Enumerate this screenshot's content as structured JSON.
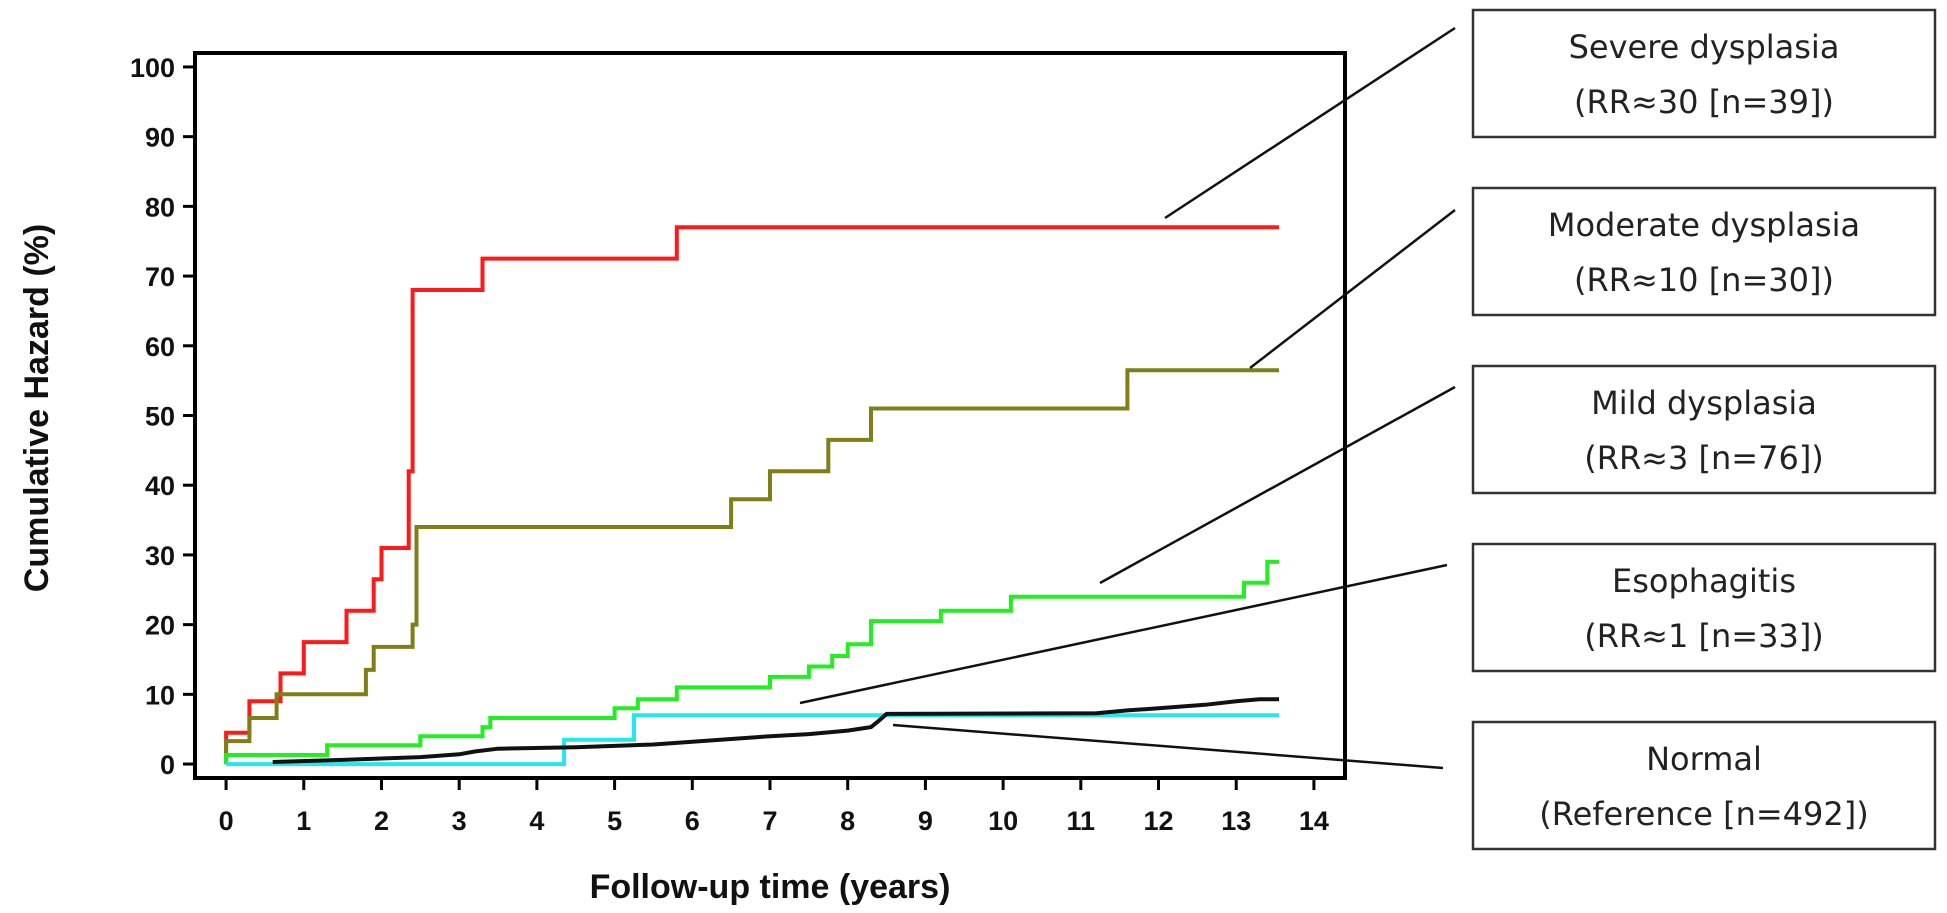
{
  "chart_data": {
    "type": "line",
    "title": "",
    "xlabel": "Follow-up time (years)",
    "ylabel": "Cumulative Hazard (%)",
    "xlim": [
      -0.4,
      14.4
    ],
    "ylim": [
      -2,
      102
    ],
    "xticks": [
      "0",
      "1",
      "2",
      "3",
      "4",
      "5",
      "6",
      "7",
      "8",
      "9",
      "10",
      "11",
      "12",
      "13",
      "14"
    ],
    "yticks": [
      "0",
      "10",
      "20",
      "30",
      "40",
      "50",
      "60",
      "70",
      "80",
      "90",
      "100"
    ],
    "grid": false,
    "line_style": "step",
    "legend_placement": "right",
    "series": [
      {
        "name": "Severe dysplasia",
        "label_lines": [
          "Severe dysplasia",
          "(RR≈30 [n=39])"
        ],
        "color": "#ff1a1a",
        "points": [
          [
            0,
            0
          ],
          [
            0,
            4.5
          ],
          [
            0.3,
            4.5
          ],
          [
            0.3,
            9
          ],
          [
            0.7,
            9
          ],
          [
            0.7,
            13
          ],
          [
            1,
            13
          ],
          [
            1,
            17.5
          ],
          [
            1.55,
            17.5
          ],
          [
            1.55,
            22
          ],
          [
            1.9,
            22
          ],
          [
            1.9,
            26.5
          ],
          [
            2.0,
            26.5
          ],
          [
            2.0,
            31
          ],
          [
            2.35,
            31
          ],
          [
            2.35,
            42
          ],
          [
            2.4,
            42
          ],
          [
            2.4,
            68
          ],
          [
            3.3,
            68
          ],
          [
            3.3,
            72.5
          ],
          [
            5.8,
            72.5
          ],
          [
            5.8,
            77
          ],
          [
            13.55,
            77
          ]
        ]
      },
      {
        "name": "Moderate dysplasia",
        "label_lines": [
          "Moderate dysplasia",
          "(RR≈10 [n=30])"
        ],
        "color": "#7f7f16",
        "points": [
          [
            0,
            0
          ],
          [
            0,
            3.3
          ],
          [
            0.3,
            3.3
          ],
          [
            0.3,
            6.6
          ],
          [
            0.65,
            6.6
          ],
          [
            0.65,
            10
          ],
          [
            1.8,
            10
          ],
          [
            1.8,
            13.5
          ],
          [
            1.9,
            13.5
          ],
          [
            1.9,
            16.8
          ],
          [
            2.4,
            16.8
          ],
          [
            2.4,
            20
          ],
          [
            2.45,
            20
          ],
          [
            2.45,
            34
          ],
          [
            6.5,
            34
          ],
          [
            6.5,
            38
          ],
          [
            7.0,
            38
          ],
          [
            7.0,
            42
          ],
          [
            7.75,
            42
          ],
          [
            7.75,
            46.5
          ],
          [
            8.3,
            46.5
          ],
          [
            8.3,
            51
          ],
          [
            11.6,
            51
          ],
          [
            11.6,
            56.5
          ],
          [
            13.55,
            56.5
          ]
        ]
      },
      {
        "name": "Mild dysplasia",
        "label_lines": [
          "Mild dysplasia",
          "(RR≈3 [n=76])"
        ],
        "color": "#22ee22",
        "points": [
          [
            0,
            0
          ],
          [
            0,
            1.3
          ],
          [
            1.3,
            1.3
          ],
          [
            1.3,
            2.7
          ],
          [
            2.5,
            2.7
          ],
          [
            2.5,
            4
          ],
          [
            3.3,
            4
          ],
          [
            3.3,
            5.3
          ],
          [
            3.4,
            5.3
          ],
          [
            3.4,
            6.6
          ],
          [
            5.0,
            6.6
          ],
          [
            5.0,
            8
          ],
          [
            5.3,
            8
          ],
          [
            5.3,
            9.3
          ],
          [
            5.8,
            9.3
          ],
          [
            5.8,
            11
          ],
          [
            7.0,
            11
          ],
          [
            7.0,
            12.5
          ],
          [
            7.5,
            12.5
          ],
          [
            7.5,
            14
          ],
          [
            7.8,
            14
          ],
          [
            7.8,
            15.5
          ],
          [
            8.0,
            15.5
          ],
          [
            8.0,
            17.2
          ],
          [
            8.3,
            17.2
          ],
          [
            8.3,
            20.5
          ],
          [
            9.2,
            20.5
          ],
          [
            9.2,
            22
          ],
          [
            10.1,
            22
          ],
          [
            10.1,
            24
          ],
          [
            13.1,
            24
          ],
          [
            13.1,
            26
          ],
          [
            13.4,
            26
          ],
          [
            13.4,
            29
          ],
          [
            13.55,
            29
          ]
        ]
      },
      {
        "name": "Esophagitis",
        "label_lines": [
          "Esophagitis",
          "(RR≈1 [n=33])"
        ],
        "color": "#22e6f0",
        "points": [
          [
            0,
            0
          ],
          [
            4.35,
            0
          ],
          [
            4.35,
            3.5
          ],
          [
            5.25,
            3.5
          ],
          [
            5.25,
            7
          ],
          [
            13.55,
            7
          ]
        ]
      },
      {
        "name": "Normal",
        "label_lines": [
          "Normal",
          "(Reference [n=492])"
        ],
        "color": "#111111",
        "points": [
          [
            0.6,
            0.3
          ],
          [
            1.5,
            0.6
          ],
          [
            2.5,
            1
          ],
          [
            3.0,
            1.4
          ],
          [
            3.2,
            1.8
          ],
          [
            3.5,
            2.2
          ],
          [
            4.5,
            2.4
          ],
          [
            5.5,
            2.8
          ],
          [
            6.0,
            3.2
          ],
          [
            6.5,
            3.6
          ],
          [
            7.0,
            4
          ],
          [
            7.5,
            4.3
          ],
          [
            8.0,
            4.8
          ],
          [
            8.3,
            5.3
          ],
          [
            8.4,
            6.2
          ],
          [
            8.5,
            7.2
          ],
          [
            11.2,
            7.3
          ],
          [
            11.6,
            7.7
          ],
          [
            12.0,
            8
          ],
          [
            12.6,
            8.5
          ],
          [
            13.0,
            9
          ],
          [
            13.3,
            9.3
          ],
          [
            13.55,
            9.3
          ]
        ]
      }
    ]
  },
  "legend_boxes": [
    {
      "top": "Severe dysplasia",
      "bottom": "(RR≈30 [n=39])"
    },
    {
      "top": "Moderate dysplasia",
      "bottom": "(RR≈10 [n=30])"
    },
    {
      "top": "Mild dysplasia",
      "bottom": "(RR≈3 [n=76])"
    },
    {
      "top": "Esophagitis",
      "bottom": "(RR≈1 [n=33])"
    },
    {
      "top": "Normal",
      "bottom": "(Reference [n=492])"
    }
  ]
}
